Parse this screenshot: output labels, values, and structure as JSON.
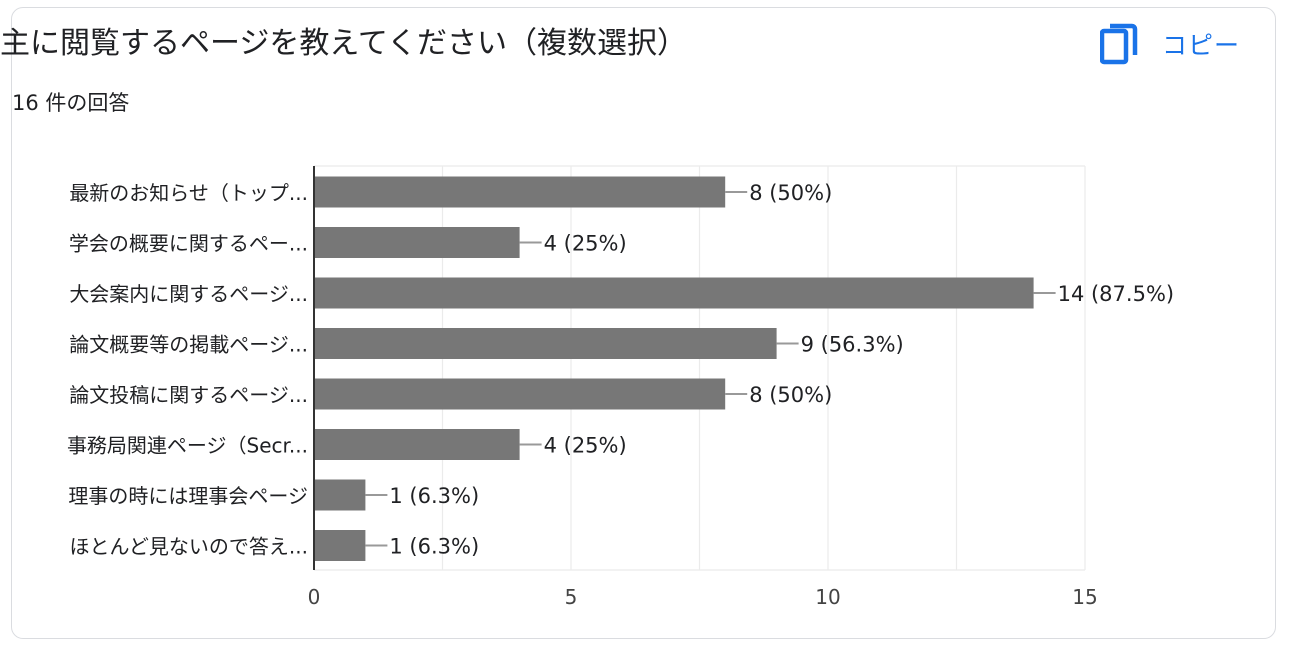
{
  "header": {
    "title": "主に閲覧するページを教えてください（複数選択）",
    "response_count": "16 件の回答",
    "copy_label": "コピー",
    "copy_icon": "copy-icon"
  },
  "colors": {
    "bar": "#777777",
    "accent": "#1a73e8",
    "grid": "#ebebeb",
    "axis": "#333333"
  },
  "chart_data": {
    "type": "bar",
    "orientation": "horizontal",
    "categories": [
      "最新のお知らせ（トップ...",
      "学会の概要に関するペー...",
      "大会案内に関するページ...",
      "論文概要等の掲載ページ...",
      "論文投稿に関するページ...",
      "事務局関連ページ（Secr...",
      "理事の時には理事会ページ",
      "ほとんど見ないので答え..."
    ],
    "values": [
      8,
      4,
      14,
      9,
      8,
      4,
      1,
      1
    ],
    "data_labels": [
      "8 (50%)",
      "4 (25%)",
      "14 (87.5%)",
      "9 (56.3%)",
      "8 (50%)",
      "4 (25%)",
      "1 (6.3%)",
      "1 (6.3%)"
    ],
    "xlim": [
      0,
      15
    ],
    "xticks": [
      0,
      5,
      10,
      15
    ],
    "grid": true,
    "legend": "none"
  }
}
